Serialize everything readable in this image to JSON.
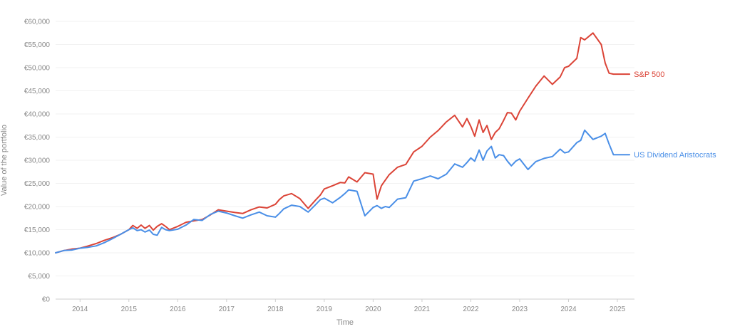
{
  "chart_data": {
    "type": "line",
    "xlabel": "Time",
    "ylabel": "Value of the portfolio",
    "ylim": [
      0,
      60000
    ],
    "xlim": [
      2013.5,
      2025.35
    ],
    "y_ticks": [
      0,
      5000,
      10000,
      15000,
      20000,
      25000,
      30000,
      35000,
      40000,
      45000,
      50000,
      55000,
      60000
    ],
    "y_tick_labels": [
      "€0",
      "€5,000",
      "€10,000",
      "€15,000",
      "€20,000",
      "€25,000",
      "€30,000",
      "€35,000",
      "€40,000",
      "€45,000",
      "€50,000",
      "€55,000",
      "€60,000"
    ],
    "x_ticks": [
      2014,
      2015,
      2016,
      2017,
      2018,
      2019,
      2020,
      2021,
      2022,
      2023,
      2024,
      2025
    ],
    "x_tick_labels": [
      "2014",
      "2015",
      "2016",
      "2017",
      "2018",
      "2019",
      "2020",
      "2021",
      "2022",
      "2023",
      "2024",
      "2025"
    ],
    "grid": "horizontal",
    "legend": "inline-right",
    "series": [
      {
        "name": "S&P 500",
        "color": "#db4437",
        "x": [
          2013.5,
          2013.67,
          2013.83,
          2014.0,
          2014.17,
          2014.33,
          2014.5,
          2014.67,
          2014.83,
          2015.0,
          2015.08,
          2015.17,
          2015.25,
          2015.33,
          2015.42,
          2015.5,
          2015.58,
          2015.67,
          2015.75,
          2015.83,
          2016.0,
          2016.17,
          2016.33,
          2016.5,
          2016.67,
          2016.83,
          2017.0,
          2017.17,
          2017.33,
          2017.5,
          2017.67,
          2017.83,
          2018.0,
          2018.08,
          2018.17,
          2018.33,
          2018.5,
          2018.67,
          2018.83,
          2018.92,
          2019.0,
          2019.17,
          2019.33,
          2019.42,
          2019.5,
          2019.67,
          2019.83,
          2020.0,
          2020.08,
          2020.17,
          2020.25,
          2020.33,
          2020.5,
          2020.67,
          2020.83,
          2021.0,
          2021.17,
          2021.33,
          2021.5,
          2021.67,
          2021.83,
          2021.92,
          2022.0,
          2022.08,
          2022.17,
          2022.25,
          2022.33,
          2022.42,
          2022.5,
          2022.58,
          2022.67,
          2022.75,
          2022.83,
          2022.92,
          2023.0,
          2023.17,
          2023.33,
          2023.5,
          2023.67,
          2023.83,
          2023.92,
          2024.0,
          2024.17,
          2024.25,
          2024.33,
          2024.5,
          2024.67,
          2024.75,
          2024.83,
          2024.92,
          2025.0,
          2025.08,
          2025.17,
          2025.25
        ],
        "y": [
          10000,
          10500,
          10800,
          11000,
          11500,
          12000,
          12700,
          13300,
          14000,
          15000,
          15900,
          15300,
          16000,
          15300,
          15900,
          14900,
          15700,
          16300,
          15700,
          15000,
          15700,
          16600,
          16900,
          17200,
          18200,
          19300,
          19000,
          18700,
          18500,
          19300,
          19900,
          19700,
          20500,
          21500,
          22300,
          22800,
          21700,
          19600,
          21500,
          22500,
          23800,
          24500,
          25200,
          25100,
          26400,
          25300,
          27300,
          27000,
          21600,
          24500,
          25700,
          26900,
          28500,
          29100,
          31800,
          33000,
          35000,
          36400,
          38300,
          39700,
          37200,
          39000,
          37300,
          35200,
          38700,
          36000,
          37500,
          34500,
          36000,
          36800,
          38600,
          40300,
          40200,
          38700,
          40600,
          43400,
          46000,
          48200,
          46400,
          48000,
          50000,
          50300,
          52000,
          56500,
          56000,
          57500,
          55000,
          51000,
          48800,
          48600,
          48600,
          48600,
          48600,
          48600
        ],
        "end_label": "S&P 500"
      },
      {
        "name": "US Dividend Aristocrats",
        "color": "#4a8fe7",
        "x": [
          2013.5,
          2013.67,
          2013.83,
          2014.0,
          2014.17,
          2014.33,
          2014.5,
          2014.67,
          2014.83,
          2015.0,
          2015.08,
          2015.17,
          2015.25,
          2015.33,
          2015.42,
          2015.5,
          2015.58,
          2015.67,
          2015.75,
          2015.83,
          2016.0,
          2016.17,
          2016.33,
          2016.5,
          2016.67,
          2016.83,
          2017.0,
          2017.17,
          2017.33,
          2017.5,
          2017.67,
          2017.83,
          2018.0,
          2018.08,
          2018.17,
          2018.33,
          2018.5,
          2018.67,
          2018.83,
          2018.92,
          2019.0,
          2019.17,
          2019.33,
          2019.42,
          2019.5,
          2019.67,
          2019.83,
          2020.0,
          2020.08,
          2020.17,
          2020.25,
          2020.33,
          2020.5,
          2020.67,
          2020.83,
          2021.0,
          2021.17,
          2021.33,
          2021.5,
          2021.67,
          2021.83,
          2021.92,
          2022.0,
          2022.08,
          2022.17,
          2022.25,
          2022.33,
          2022.42,
          2022.5,
          2022.58,
          2022.67,
          2022.75,
          2022.83,
          2022.92,
          2023.0,
          2023.17,
          2023.33,
          2023.5,
          2023.67,
          2023.83,
          2023.92,
          2024.0,
          2024.17,
          2024.25,
          2024.33,
          2024.5,
          2024.67,
          2024.75,
          2024.83,
          2024.92,
          2025.0,
          2025.08,
          2025.17,
          2025.25
        ],
        "y": [
          10000,
          10500,
          10600,
          11000,
          11200,
          11500,
          12200,
          13100,
          14000,
          15000,
          15400,
          14800,
          15000,
          14500,
          14900,
          14000,
          13800,
          15500,
          15000,
          14800,
          15100,
          16000,
          17200,
          17000,
          18300,
          19000,
          18600,
          18000,
          17500,
          18200,
          18800,
          18000,
          17700,
          18500,
          19500,
          20300,
          20000,
          18800,
          20500,
          21500,
          21800,
          20800,
          22000,
          22800,
          23600,
          23300,
          18000,
          19800,
          20200,
          19600,
          20000,
          19800,
          21600,
          21900,
          25500,
          26000,
          26600,
          26000,
          27000,
          29200,
          28500,
          29500,
          30500,
          29800,
          32200,
          30000,
          32000,
          33000,
          30500,
          31200,
          31000,
          29800,
          28800,
          29800,
          30300,
          28000,
          29700,
          30400,
          30800,
          32400,
          31600,
          31800,
          33800,
          34300,
          36500,
          34500,
          35200,
          35800,
          33500,
          31200,
          31200,
          31200,
          31200,
          31200
        ],
        "end_label": "US Dividend Aristocrats"
      }
    ]
  }
}
